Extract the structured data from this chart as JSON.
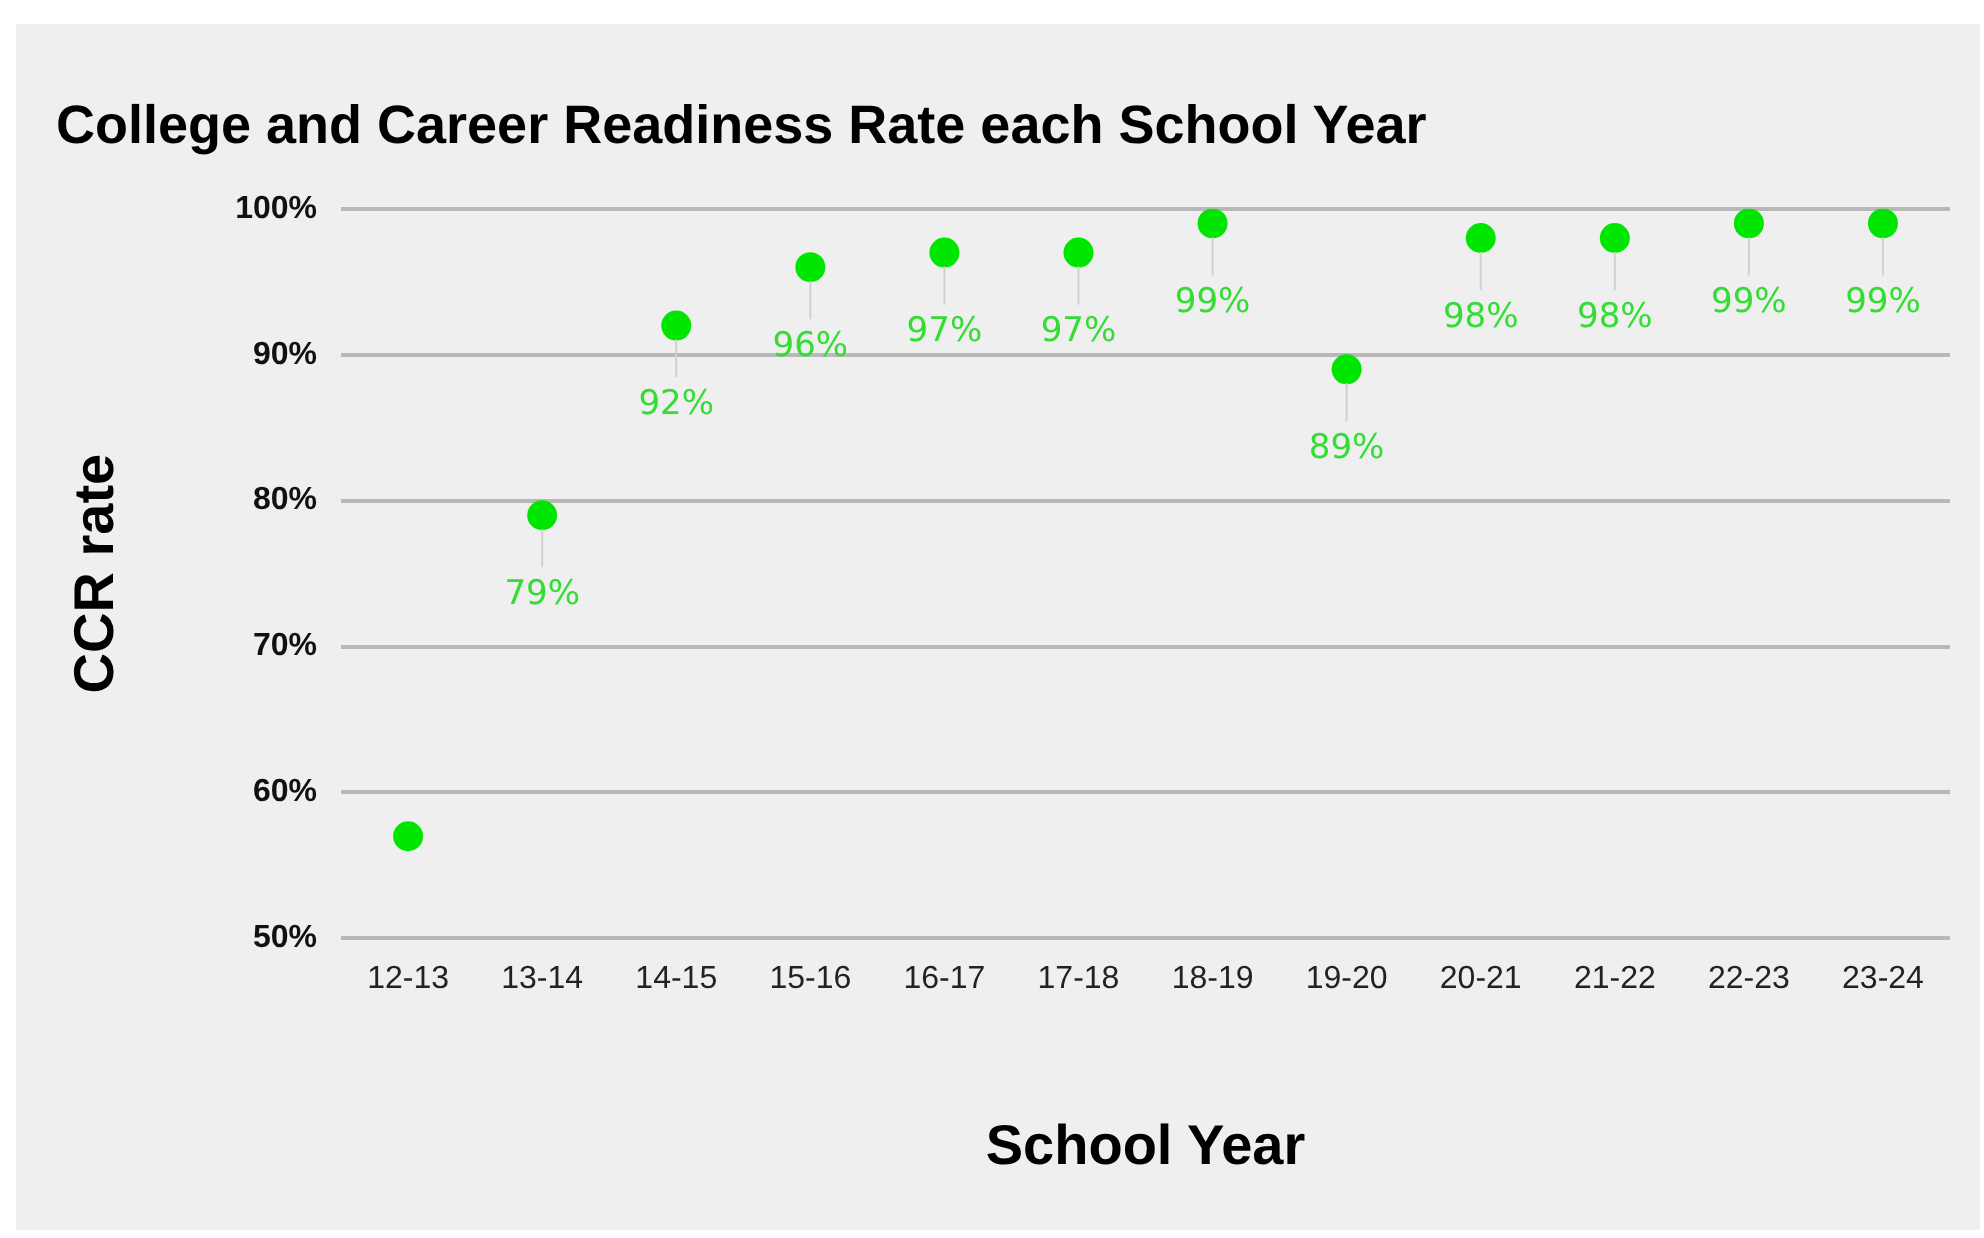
{
  "chart_data": {
    "type": "scatter",
    "title": "College and Career Readiness Rate each School Year",
    "xlabel": "School Year",
    "ylabel": "CCR rate",
    "categories": [
      "12-13",
      "13-14",
      "14-15",
      "15-16",
      "16-17",
      "17-18",
      "18-19",
      "19-20",
      "20-21",
      "21-22",
      "22-23",
      "23-24"
    ],
    "values": [
      57,
      79,
      92,
      96,
      97,
      97,
      99,
      89,
      98,
      98,
      99,
      99
    ],
    "value_labels": [
      null,
      "79%",
      "92%",
      "96%",
      "97%",
      "97%",
      "99%",
      "89%",
      "98%",
      "98%",
      "99%",
      "99%"
    ],
    "color": "#00e600",
    "marker": "circle",
    "ylim": [
      50,
      100
    ],
    "yticks": [
      {
        "value": 50,
        "label": "50%"
      },
      {
        "value": 60,
        "label": "60%"
      },
      {
        "value": 70,
        "label": "70%"
      },
      {
        "value": 80,
        "label": "80%"
      },
      {
        "value": 90,
        "label": "90%"
      },
      {
        "value": 100,
        "label": "100%"
      }
    ],
    "grid": "y",
    "legend": false
  }
}
